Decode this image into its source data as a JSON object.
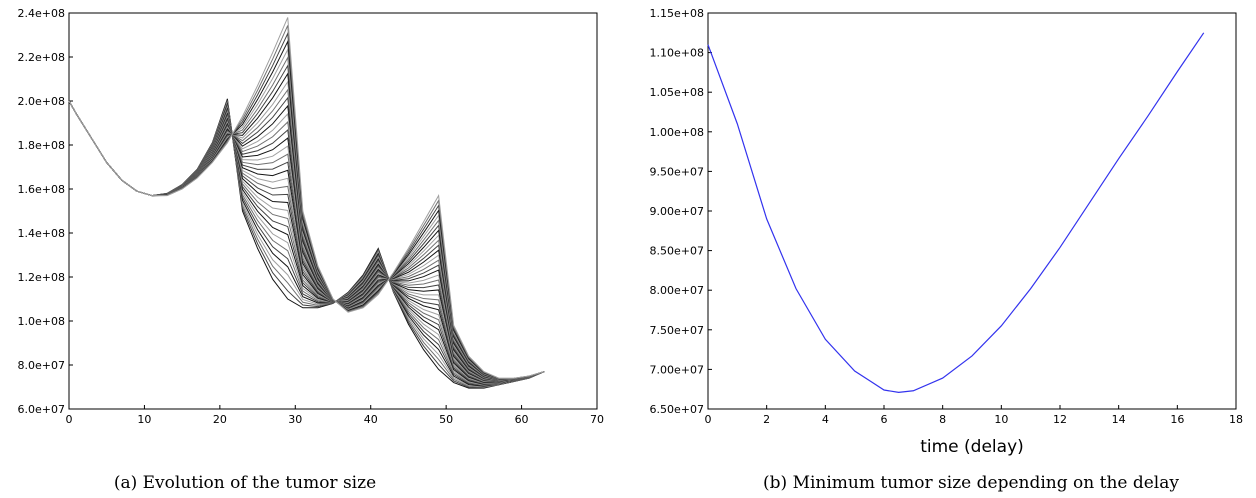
{
  "chart_data": [
    {
      "type": "line",
      "caption": "(a) Evolution of the tumor size",
      "xlim": [
        0,
        70
      ],
      "ylim": [
        60000000,
        240000000
      ],
      "x_ticks": [
        "0",
        "10",
        "20",
        "30",
        "40",
        "50",
        "60",
        "70"
      ],
      "y_ticks": [
        "6.0e+07",
        "8.0e+07",
        "1.0e+08",
        "1.2e+08",
        "1.4e+08",
        "1.6e+08",
        "1.8e+08",
        "2.0e+08",
        "2.2e+08",
        "2.4e+08"
      ],
      "curve_count": 36,
      "delay_step": 0.5,
      "base_curve": {
        "x": [
          0,
          1,
          3,
          5,
          7,
          9,
          11,
          13,
          15,
          17,
          19,
          21,
          21.3,
          23,
          25,
          27,
          29,
          31,
          33,
          35,
          37,
          39,
          41,
          42,
          42.3,
          44,
          46,
          48,
          50,
          52,
          54,
          56,
          58,
          60,
          62,
          63
        ],
        "y": [
          200000000,
          194000000,
          183000000,
          172000000,
          164000000,
          159000000,
          157000000,
          158000000,
          162000000,
          169000000,
          181000000,
          201000000,
          168000000,
          150000000,
          133000000,
          119000000,
          110000000,
          106000000,
          106000000,
          108000000,
          113000000,
          121000000,
          133000000,
          142000000,
          119000000,
          105000000,
          92000000,
          82000000,
          74000000,
          70000000,
          69000000,
          70000000,
          72000000,
          73000000,
          75000000,
          77000000
        ]
      },
      "shifted_profile": {
        "x": [
          0,
          1,
          3,
          5,
          7,
          9,
          11,
          13,
          15,
          17,
          19,
          21,
          23,
          25,
          27,
          29,
          31,
          33,
          35,
          37,
          39,
          41,
          43,
          45,
          47,
          49,
          51,
          53,
          55,
          57,
          59,
          61,
          63
        ],
        "y": [
          200000000,
          194000000,
          183000000,
          172000000,
          164000000,
          159000000,
          157000000,
          157000000,
          160000000,
          165000000,
          172000000,
          181000000,
          193000000,
          207000000,
          222000000,
          238000000,
          150000000,
          125000000,
          110000000,
          104000000,
          106000000,
          112000000,
          122000000,
          133000000,
          145000000,
          157000000,
          98000000,
          84000000,
          77000000,
          74000000,
          74000000,
          75000000,
          77000000
        ]
      }
    },
    {
      "type": "line",
      "caption": "(b) Minimum tumor size depending on the delay",
      "xlabel": "time (delay)",
      "xlim": [
        0,
        18
      ],
      "ylim": [
        65000000,
        115000000
      ],
      "x_ticks": [
        "0",
        "2",
        "4",
        "6",
        "8",
        "10",
        "12",
        "14",
        "16",
        "18"
      ],
      "y_ticks": [
        "6.50e+07",
        "7.00e+07",
        "7.50e+07",
        "8.00e+07",
        "8.50e+07",
        "9.00e+07",
        "9.50e+07",
        "1.00e+08",
        "1.05e+08",
        "1.10e+08",
        "1.15e+08"
      ],
      "color": "#3333ee",
      "series": [
        {
          "x": [
            0,
            1,
            2,
            3,
            4,
            5,
            6,
            6.5,
            7,
            8,
            9,
            10,
            11,
            12,
            13,
            14,
            15,
            16,
            16.9
          ],
          "y": [
            111000000,
            101000000,
            89000000,
            80200000,
            73800000,
            69800000,
            67400000,
            67100000,
            67300000,
            68900000,
            71700000,
            75500000,
            80200000,
            85400000,
            91000000,
            96600000,
            102000000,
            107600000,
            112500000
          ]
        }
      ]
    }
  ]
}
